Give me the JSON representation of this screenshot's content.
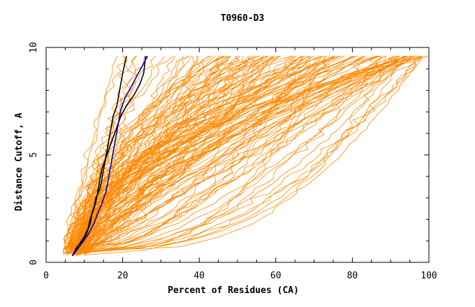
{
  "chart_data": {
    "type": "line",
    "title": "T0960-D3",
    "xlabel": "Percent of Residues (CA)",
    "ylabel": "Distance Cutoff, A",
    "xlim": [
      0,
      100
    ],
    "ylim": [
      0,
      10
    ],
    "xticks": [
      "0",
      "20",
      "40",
      "60",
      "80",
      "100"
    ],
    "yticks": [
      "0",
      "5",
      "10"
    ],
    "grid": false,
    "colors": {
      "background_models": "#ff8800",
      "highlight_a": "#000000",
      "highlight_b": "#0000b0"
    },
    "series": [
      {
        "color": "#000000",
        "x": [
          6.9,
          8,
          9.5,
          10.5,
          11.5,
          12,
          13,
          13.5,
          14,
          14.5,
          15.5,
          16.5,
          17.5,
          18.5,
          19.5,
          21,
          23,
          24.5,
          25.5,
          26
        ],
        "y": [
          0.3,
          0.7,
          1.0,
          1.3,
          1.8,
          2.3,
          2.8,
          3.3,
          3.8,
          4.3,
          4.8,
          5.3,
          5.8,
          6.3,
          6.8,
          7.3,
          7.8,
          8.3,
          8.8,
          9.6
        ]
      },
      {
        "color": "#000000",
        "x": [
          6.9,
          8.5,
          10,
          11,
          11.5,
          12.5,
          13,
          14,
          14.5,
          15,
          15.5,
          16,
          16.5,
          17,
          17.5,
          18.5,
          19,
          19.5,
          20,
          21
        ],
        "y": [
          0.3,
          0.8,
          1.2,
          1.6,
          2.0,
          2.5,
          3.0,
          3.4,
          3.8,
          4.3,
          4.8,
          5.3,
          5.8,
          6.3,
          6.8,
          7.3,
          7.8,
          8.3,
          8.8,
          9.6
        ]
      },
      {
        "color": "#0000b0",
        "x": [
          6.9,
          9,
          11,
          12.5,
          13.5,
          14.5,
          15.5,
          16,
          16.5,
          17,
          17.5,
          18,
          18.5,
          19,
          19.5,
          20.5,
          22,
          23.5,
          25,
          26.5
        ],
        "y": [
          0.3,
          0.8,
          1.3,
          1.8,
          2.3,
          2.7,
          3.2,
          3.6,
          4.1,
          4.6,
          5.1,
          5.6,
          6.1,
          6.6,
          7.1,
          7.6,
          8.1,
          8.6,
          9.1,
          9.6
        ]
      }
    ]
  }
}
